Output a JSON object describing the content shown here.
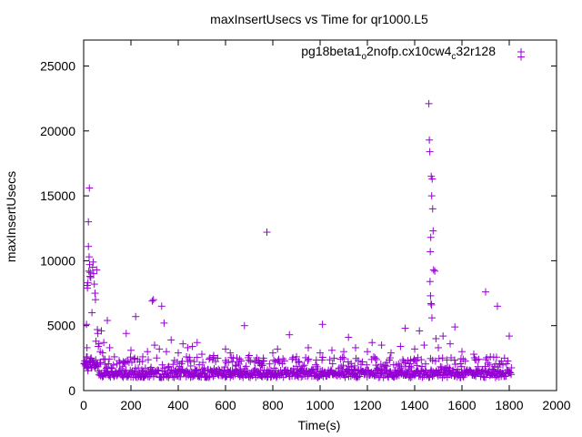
{
  "chart_data": {
    "type": "scatter",
    "title": "maxInsertUsecs vs Time for qr1000.L5",
    "xlabel": "Time(s)",
    "ylabel": "maxInsertUsecs",
    "xlim": [
      0,
      2000
    ],
    "ylim": [
      0,
      27000
    ],
    "x_ticks": [
      "0",
      "200",
      "400",
      "600",
      "800",
      "1000",
      "1200",
      "1400",
      "1600",
      "1800",
      "2000"
    ],
    "y_ticks": [
      "0",
      "5000",
      "10000",
      "15000",
      "20000",
      "25000"
    ],
    "grid": false,
    "legend_position": "top-right",
    "series_color": "#9400d3",
    "marker": "plus",
    "series": [
      {
        "name_parts": [
          {
            "text": "pg18beta1",
            "sub": false
          },
          {
            "text": "o",
            "sub": true
          },
          {
            "text": "2nofp.cx10cw4",
            "sub": false
          },
          {
            "text": "c",
            "sub": true
          },
          {
            "text": "32r128",
            "sub": false
          }
        ],
        "points": [
          [
            5,
            2100
          ],
          [
            8,
            1900
          ],
          [
            10,
            2000
          ],
          [
            12,
            5100
          ],
          [
            14,
            3300
          ],
          [
            15,
            8100
          ],
          [
            16,
            7900
          ],
          [
            18,
            8300
          ],
          [
            20,
            11100
          ],
          [
            20,
            13000
          ],
          [
            22,
            9200
          ],
          [
            23,
            10300
          ],
          [
            24,
            15600
          ],
          [
            25,
            9700
          ],
          [
            27,
            8800
          ],
          [
            28,
            9100
          ],
          [
            30,
            8700
          ],
          [
            32,
            2500
          ],
          [
            35,
            6000
          ],
          [
            38,
            9500
          ],
          [
            40,
            9900
          ],
          [
            42,
            9000
          ],
          [
            45,
            8200
          ],
          [
            48,
            7500
          ],
          [
            50,
            7000
          ],
          [
            52,
            3800
          ],
          [
            55,
            9300
          ],
          [
            58,
            4700
          ],
          [
            60,
            4400
          ],
          [
            62,
            3400
          ],
          [
            65,
            3600
          ],
          [
            70,
            3000
          ],
          [
            75,
            4600
          ],
          [
            80,
            2900
          ],
          [
            85,
            3700
          ],
          [
            90,
            2400
          ],
          [
            100,
            5400
          ],
          [
            110,
            3300
          ],
          [
            130,
            2600
          ],
          [
            150,
            2300
          ],
          [
            180,
            4400
          ],
          [
            200,
            3100
          ],
          [
            220,
            5700
          ],
          [
            250,
            2600
          ],
          [
            270,
            3000
          ],
          [
            290,
            6900
          ],
          [
            295,
            7000
          ],
          [
            300,
            3500
          ],
          [
            320,
            3200
          ],
          [
            330,
            6500
          ],
          [
            340,
            5200
          ],
          [
            350,
            3000
          ],
          [
            370,
            3900
          ],
          [
            400,
            2900
          ],
          [
            420,
            3600
          ],
          [
            440,
            3300
          ],
          [
            460,
            3400
          ],
          [
            480,
            3700
          ],
          [
            500,
            2800
          ],
          [
            550,
            2700
          ],
          [
            600,
            3200
          ],
          [
            620,
            2900
          ],
          [
            680,
            5000
          ],
          [
            700,
            2700
          ],
          [
            760,
            2500
          ],
          [
            775,
            12200
          ],
          [
            800,
            2900
          ],
          [
            820,
            3200
          ],
          [
            870,
            4300
          ],
          [
            900,
            2600
          ],
          [
            950,
            3300
          ],
          [
            1000,
            2900
          ],
          [
            1010,
            5100
          ],
          [
            1050,
            3100
          ],
          [
            1100,
            3000
          ],
          [
            1120,
            4100
          ],
          [
            1150,
            3300
          ],
          [
            1200,
            3000
          ],
          [
            1220,
            3700
          ],
          [
            1260,
            3500
          ],
          [
            1300,
            2900
          ],
          [
            1340,
            3400
          ],
          [
            1360,
            4800
          ],
          [
            1400,
            3200
          ],
          [
            1420,
            4600
          ],
          [
            1440,
            3500
          ],
          [
            1460,
            22100
          ],
          [
            1462,
            19300
          ],
          [
            1464,
            18400
          ],
          [
            1466,
            10700
          ],
          [
            1468,
            11800
          ],
          [
            1470,
            16500
          ],
          [
            1472,
            15000
          ],
          [
            1474,
            16300
          ],
          [
            1476,
            14000
          ],
          [
            1478,
            12300
          ],
          [
            1480,
            9300
          ],
          [
            1465,
            8400
          ],
          [
            1467,
            7300
          ],
          [
            1469,
            6700
          ],
          [
            1471,
            6600
          ],
          [
            1473,
            5600
          ],
          [
            1485,
            9200
          ],
          [
            1490,
            4000
          ],
          [
            1500,
            3300
          ],
          [
            1520,
            4200
          ],
          [
            1550,
            3600
          ],
          [
            1570,
            4900
          ],
          [
            1600,
            3000
          ],
          [
            1650,
            2800
          ],
          [
            1700,
            7600
          ],
          [
            1720,
            2600
          ],
          [
            1750,
            6500
          ],
          [
            1780,
            2500
          ],
          [
            1800,
            4200
          ],
          [
            1850,
            25700
          ]
        ]
      }
    ]
  }
}
